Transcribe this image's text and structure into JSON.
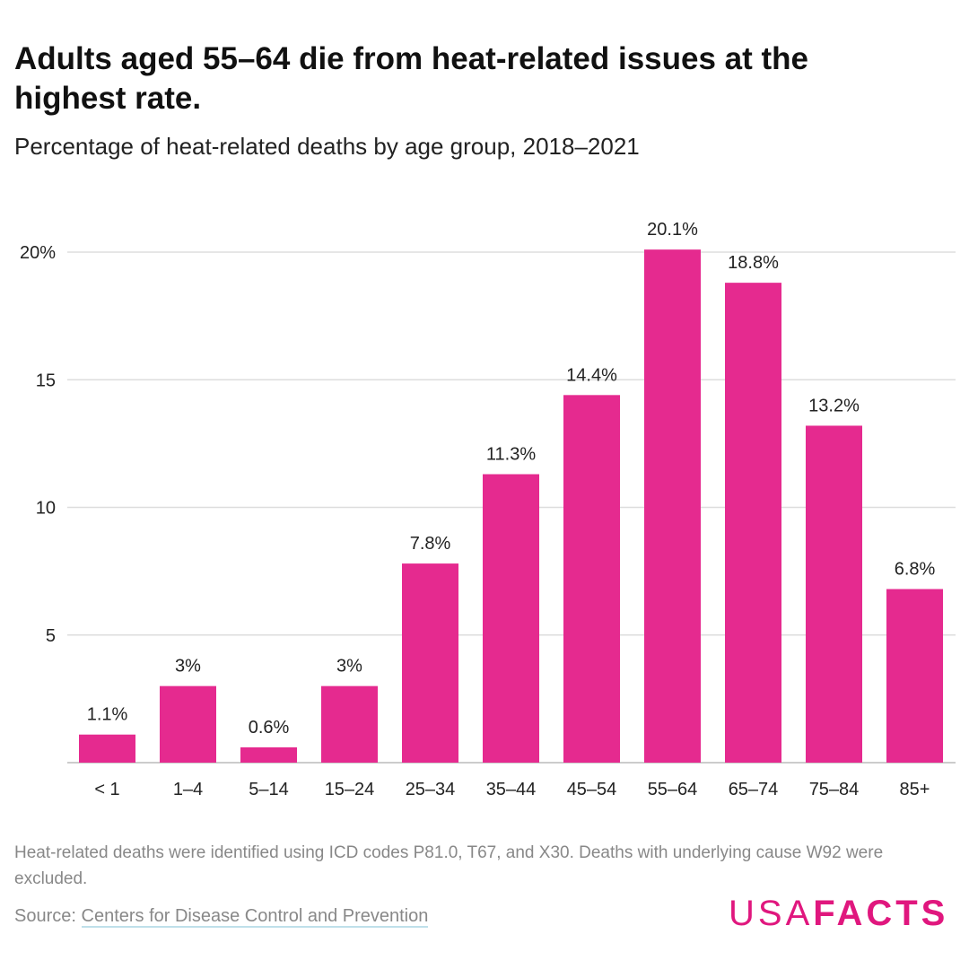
{
  "title": "Adults aged 55–64 die from heat-related issues at the highest rate.",
  "subtitle": "Percentage of heat-related deaths by age group, 2018–2021",
  "note": "Heat-related deaths were identified using ICD codes P81.0, T67, and X30. Deaths with underlying cause W92 were excluded.",
  "source_label": "Source:",
  "source_link": "Centers for Disease Control and Prevention",
  "logo": {
    "part1": "USA",
    "part2": "FACTS"
  },
  "colors": {
    "bar": "#e52a8f",
    "grid": "#dddddd",
    "brand": "#e0177e"
  },
  "chart_data": {
    "type": "bar",
    "categories": [
      "< 1",
      "1–4",
      "5–14",
      "15–24",
      "25–34",
      "35–44",
      "45–54",
      "55–64",
      "65–74",
      "75–84",
      "85+"
    ],
    "values": [
      1.1,
      3,
      0.6,
      3,
      7.8,
      11.3,
      14.4,
      20.1,
      18.8,
      13.2,
      6.8
    ],
    "data_labels": [
      "1.1%",
      "3%",
      "0.6%",
      "3%",
      "7.8%",
      "11.3%",
      "14.4%",
      "20.1%",
      "18.8%",
      "13.2%",
      "6.8%"
    ],
    "y_ticks": [
      5,
      10,
      15,
      20
    ],
    "y_tick_labels": [
      "5",
      "10",
      "15",
      "20%"
    ],
    "ylim": [
      0,
      20
    ],
    "grid": true
  }
}
